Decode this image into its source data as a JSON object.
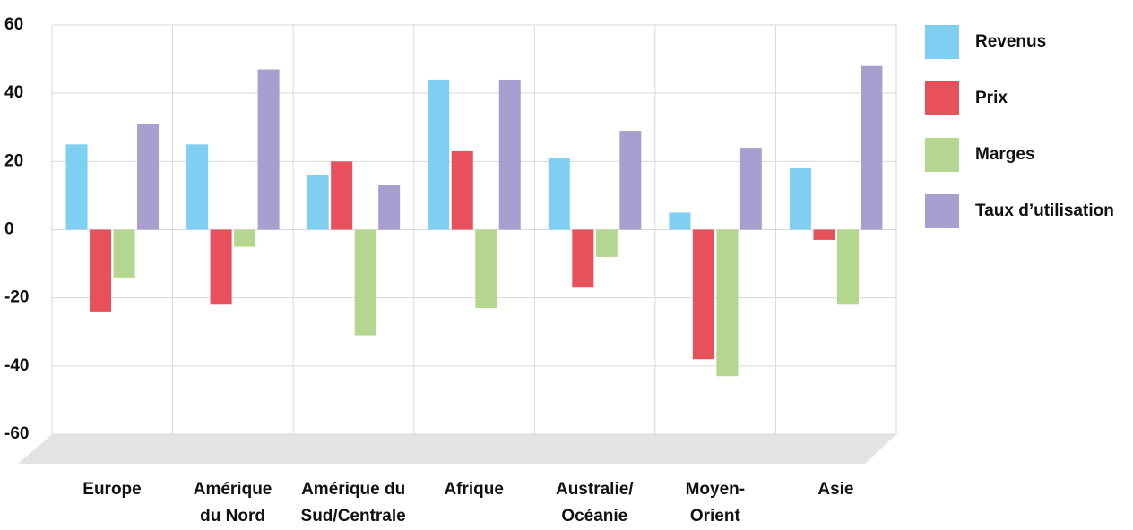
{
  "chart_data": {
    "type": "bar",
    "categories": [
      "Europe",
      "Amérique\ndu Nord",
      "Amérique du\nSud/Centrale",
      "Afrique",
      "Australie/\nOcéanie",
      "Moyen-\nOrient",
      "Asie"
    ],
    "series": [
      {
        "name": "Revenus",
        "color": "#7fcff2",
        "values": [
          25,
          25,
          16,
          44,
          21,
          5,
          18
        ]
      },
      {
        "name": "Prix",
        "color": "#e8505b",
        "values": [
          -24,
          -22,
          20,
          23,
          -17,
          -38,
          -3
        ]
      },
      {
        "name": "Marges",
        "color": "#b5d68e",
        "values": [
          -14,
          -5,
          -31,
          -23,
          -8,
          -43,
          -22
        ]
      },
      {
        "name": "Taux d’utilisation",
        "color": "#a89ecf",
        "values": [
          31,
          47,
          13,
          44,
          29,
          24,
          48
        ]
      }
    ],
    "ylim": [
      -60,
      60
    ],
    "yticks": [
      -60,
      -40,
      -20,
      0,
      20,
      40,
      60
    ],
    "grid": true,
    "legend": "right"
  }
}
